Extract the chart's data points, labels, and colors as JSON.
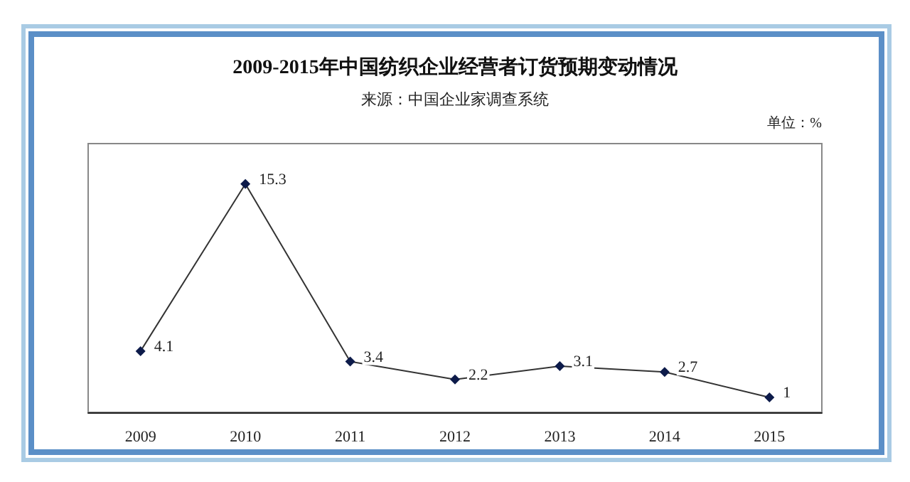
{
  "chart_data": {
    "type": "line",
    "title": "2009-2015年中国纺织企业经营者订货预期变动情况",
    "subtitle": "来源：中国企业家调查系统",
    "annotations": [
      "单位：%"
    ],
    "categories": [
      "2009",
      "2010",
      "2011",
      "2012",
      "2013",
      "2014",
      "2015"
    ],
    "series": [
      {
        "color": "#333333",
        "values": [
          4.1,
          15.3,
          3.4,
          2.2,
          3.1,
          2.7,
          1
        ]
      }
    ],
    "data_labels": true,
    "marker": "diamond",
    "line_style": "solid"
  }
}
